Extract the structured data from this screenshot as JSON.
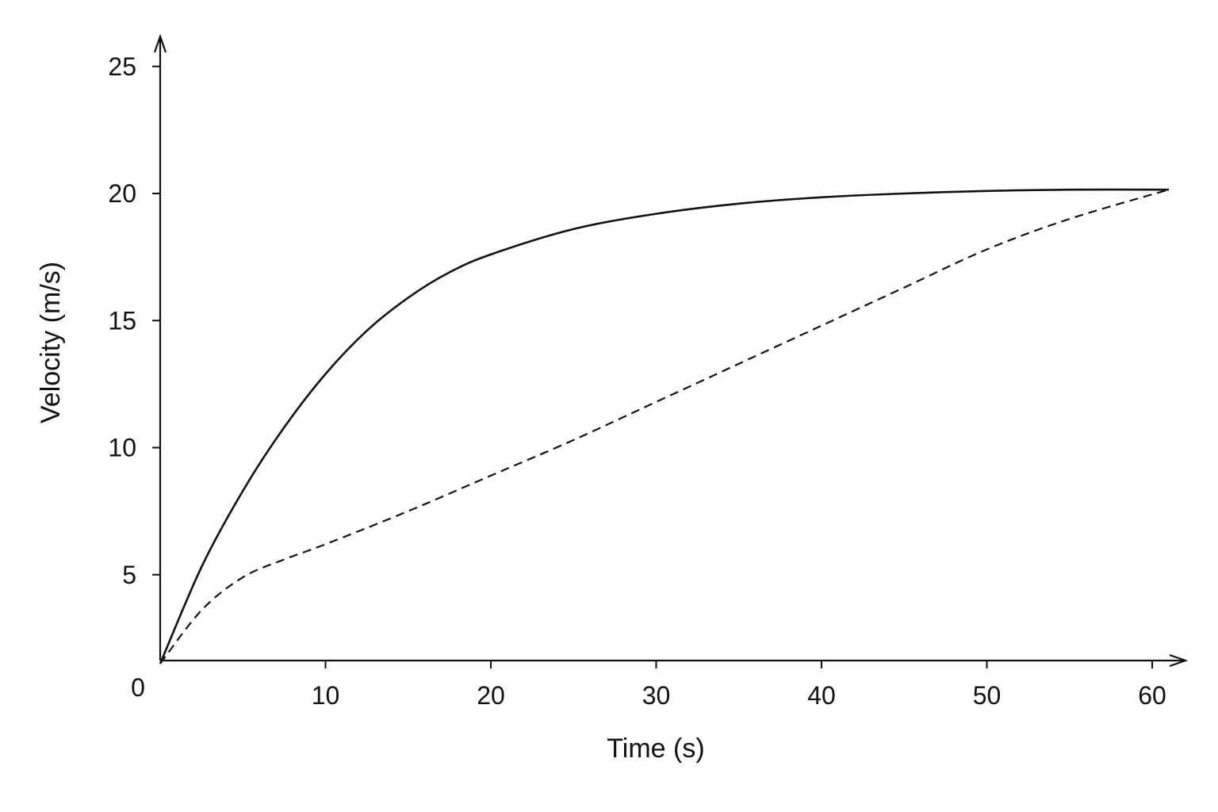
{
  "chart_data": {
    "type": "line",
    "title": "",
    "xlabel": "Time (s)",
    "ylabel": "Velocity (m/s)",
    "origin_label": "0",
    "xlim": [
      0,
      62
    ],
    "ylim": [
      1.5,
      26
    ],
    "x_ticks": [
      {
        "value": 10,
        "label": "10"
      },
      {
        "value": 20,
        "label": "20"
      },
      {
        "value": 30,
        "label": "30"
      },
      {
        "value": 40,
        "label": "40"
      },
      {
        "value": 50,
        "label": "50"
      },
      {
        "value": 60,
        "label": "60"
      }
    ],
    "y_ticks": [
      {
        "value": 5,
        "label": "5"
      },
      {
        "value": 10,
        "label": "10"
      },
      {
        "value": 15,
        "label": "15"
      },
      {
        "value": 20,
        "label": "20"
      },
      {
        "value": 25,
        "label": "25"
      }
    ],
    "grid": false,
    "legend": "none",
    "series": [
      {
        "style": "solid",
        "color": "#111111",
        "x": [
          0,
          2.5,
          5,
          7.5,
          10,
          12.5,
          15,
          17.5,
          20,
          25,
          30,
          35,
          40,
          45,
          50,
          55,
          61
        ],
        "y": [
          1.5,
          5.3,
          8.3,
          10.8,
          12.9,
          14.6,
          15.9,
          16.9,
          17.6,
          18.6,
          19.2,
          19.6,
          19.85,
          20.0,
          20.1,
          20.15,
          20.15
        ]
      },
      {
        "style": "dashed",
        "color": "#111111",
        "x": [
          0,
          2.5,
          5,
          7.5,
          10,
          15,
          20,
          25,
          30,
          35,
          40,
          45,
          50,
          55,
          61
        ],
        "y": [
          1.5,
          3.6,
          4.9,
          5.6,
          6.2,
          7.5,
          8.9,
          10.3,
          11.8,
          13.3,
          14.8,
          16.3,
          17.8,
          19.0,
          20.15
        ]
      }
    ]
  }
}
